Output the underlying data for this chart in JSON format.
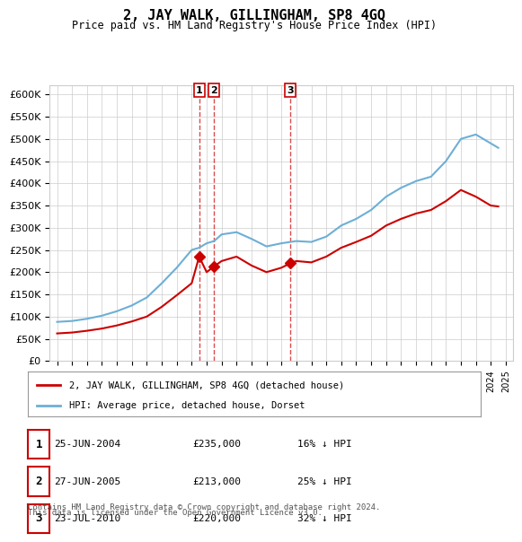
{
  "title": "2, JAY WALK, GILLINGHAM, SP8 4GQ",
  "subtitle": "Price paid vs. HM Land Registry's House Price Index (HPI)",
  "hpi_color": "#6dafd6",
  "price_color": "#cc0000",
  "marker_color": "#cc0000",
  "purchase_label_color": "#cc0000",
  "background_color": "#ffffff",
  "grid_color": "#cccccc",
  "legend_label_red": "2, JAY WALK, GILLINGHAM, SP8 4GQ (detached house)",
  "legend_label_blue": "HPI: Average price, detached house, Dorset",
  "transactions": [
    {
      "num": 1,
      "date": "25-JUN-2004",
      "price": 235000,
      "pct": "16%",
      "direction": "↓",
      "year": 2004.5
    },
    {
      "num": 2,
      "date": "27-JUN-2005",
      "price": 213000,
      "pct": "25%",
      "direction": "↓",
      "year": 2005.5
    },
    {
      "num": 3,
      "date": "23-JUL-2010",
      "price": 220000,
      "pct": "32%",
      "direction": "↓",
      "year": 2010.6
    }
  ],
  "footer_line1": "Contains HM Land Registry data © Crown copyright and database right 2024.",
  "footer_line2": "This data is licensed under the Open Government Licence v3.0.",
  "ylim": [
    0,
    620000
  ],
  "yticks": [
    0,
    50000,
    100000,
    150000,
    200000,
    250000,
    300000,
    350000,
    400000,
    450000,
    500000,
    550000,
    600000
  ],
  "xlim_start": 1994.5,
  "xlim_end": 2025.5,
  "hpi_years": [
    1995,
    1996,
    1997,
    1998,
    1999,
    2000,
    2001,
    2002,
    2003,
    2004,
    2004.5,
    2005,
    2005.5,
    2006,
    2007,
    2008,
    2009,
    2010,
    2010.6,
    2011,
    2012,
    2013,
    2014,
    2015,
    2016,
    2017,
    2018,
    2019,
    2020,
    2021,
    2022,
    2023,
    2024,
    2024.5
  ],
  "hpi_values": [
    88000,
    90000,
    95000,
    102000,
    112000,
    125000,
    143000,
    175000,
    210000,
    250000,
    255000,
    265000,
    270000,
    285000,
    290000,
    275000,
    258000,
    265000,
    268000,
    270000,
    268000,
    280000,
    305000,
    320000,
    340000,
    370000,
    390000,
    405000,
    415000,
    450000,
    500000,
    510000,
    490000,
    480000
  ],
  "price_years": [
    1995,
    1996,
    1997,
    1998,
    1999,
    2000,
    2001,
    2002,
    2003,
    2004,
    2004.5,
    2005,
    2005.5,
    2006,
    2007,
    2008,
    2009,
    2010,
    2010.6,
    2011,
    2012,
    2013,
    2014,
    2015,
    2016,
    2017,
    2018,
    2019,
    2020,
    2021,
    2022,
    2023,
    2024,
    2024.5
  ],
  "price_values": [
    62000,
    64000,
    68000,
    73000,
    80000,
    89000,
    100000,
    122000,
    148000,
    175000,
    235000,
    200000,
    213000,
    225000,
    235000,
    215000,
    200000,
    210000,
    220000,
    225000,
    222000,
    235000,
    255000,
    268000,
    282000,
    305000,
    320000,
    332000,
    340000,
    360000,
    385000,
    370000,
    350000,
    348000
  ]
}
